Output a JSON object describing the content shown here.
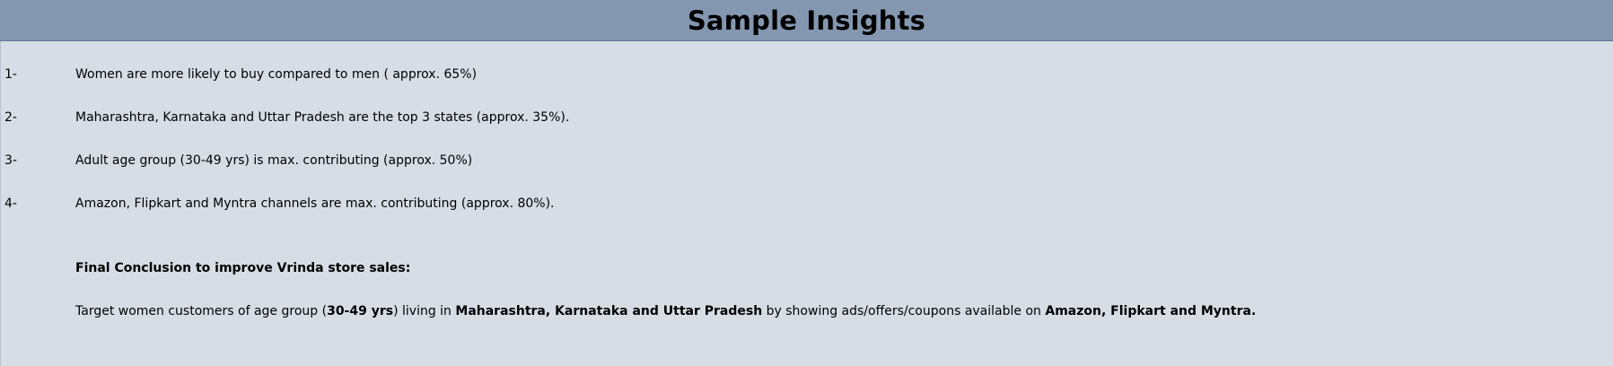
{
  "title": "Sample Insights",
  "insights": [
    {
      "num": "1-",
      "text": "Women are more likely to buy compared to men ( approx. 65%)"
    },
    {
      "num": "2-",
      "text": "Maharashtra, Karnataka and Uttar Pradesh are the top 3 states (approx. 35%)."
    },
    {
      "num": "3-",
      "text": "Adult age group (30-49 yrs) is max. contributing (approx. 50%)"
    },
    {
      "num": "4-",
      "text": "Amazon, Flipkart and Myntra channels are max. contributing (approx. 80%)."
    }
  ],
  "conclusion": {
    "heading": "Final Conclusion to improve Vrinda store sales:",
    "parts": [
      "Target women customers of age group (",
      "30-49 yrs",
      ") living in ",
      "Maharashtra, Karnataka and Uttar Pradesh",
      " by showing ads/offers/coupons available on ",
      "Amazon, Flipkart and Myntra."
    ]
  }
}
